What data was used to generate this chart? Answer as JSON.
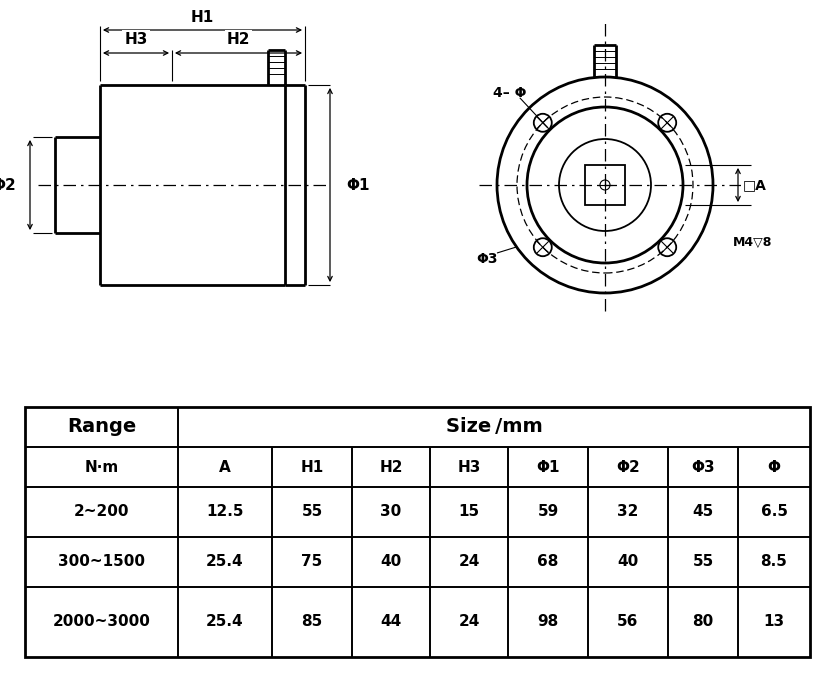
{
  "bg_color": "#ffffff",
  "line_color": "#000000",
  "table_header_row1": [
    "Range",
    "Size /mm"
  ],
  "table_header_row2": [
    "N·m",
    "A",
    "H1",
    "H2",
    "H3",
    "Φ1",
    "Φ2",
    "Φ3",
    "Φ"
  ],
  "table_data": [
    [
      "2~200",
      "12.5",
      "55",
      "30",
      "15",
      "59",
      "32",
      "45",
      "6.5"
    ],
    [
      "300~1500",
      "25.4",
      "75",
      "40",
      "24",
      "68",
      "40",
      "55",
      "8.5"
    ],
    [
      "2000~3000",
      "25.4",
      "85",
      "44",
      "24",
      "98",
      "56",
      "80",
      "13"
    ]
  ]
}
